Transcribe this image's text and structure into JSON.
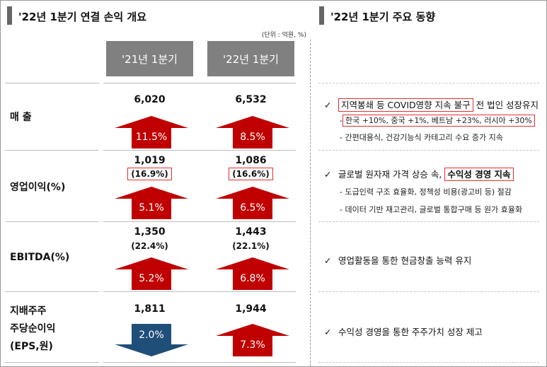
{
  "left": {
    "title": "'22년 1분기 연결 손익 개요",
    "unit": "(단위 : 억원, %)",
    "col1": "'21년 1분기",
    "col2": "'22년 1분기",
    "rows": [
      {
        "label": "매 출",
        "v1": "6,020",
        "v2": "6,532",
        "a1": "11.5%",
        "a2": "8.5%"
      },
      {
        "label": "영업이익(%)",
        "v1": "1,019",
        "s1": "(16.9%)",
        "v2": "1,086",
        "s2": "(16.6%)",
        "a1": "5.1%",
        "a2": "6.5%"
      },
      {
        "label": "EBITDA(%)",
        "v1": "1,350",
        "s1": "(22.4%)",
        "v2": "1,443",
        "s2": "(22.1%)",
        "a1": "5.2%",
        "a2": "6.8%"
      },
      {
        "label1": "지배주주",
        "label2": "주당순이익",
        "label3": "(EPS,원)",
        "v1": "1,811",
        "v2": "1,944",
        "a1": "2.0%",
        "a2": "7.3%"
      }
    ]
  },
  "right": {
    "title": "'22년 1분기 주요 동향",
    "b1_highlight": "지역봉쇄 등 COVID영향 지속 불구",
    "b1_rest": "전 법인 성장유지",
    "b1_sub1": "한국 +10%, 중국 +1%, 베트남 +23%, 러시아 +30%",
    "b1_sub2": "- 간편대용식, 건강기능식 카테고리 수요 증가 지속",
    "b2_pre": "글로벌 원자재 가격 상승 속, ",
    "b2_highlight": "수익성 경영 지속",
    "b2_sub1": "- 도급인력 구조 효율화, 정책성 비용(광고비 등) 절감",
    "b2_sub2": "- 데이터 기반 재고관리, 글로벌 통합구매 등 원가 효율화",
    "b3": "영업활동을 통한 현금창출 능력 유지",
    "b4": "수익성 경영을 통한 주주가치 성장 제고",
    "check": "✓",
    "dash": "-"
  },
  "colors": {
    "arrow_up": "#c00000",
    "arrow_down": "#1f4e79",
    "header_bg": "#808080",
    "highlight_border": "#e03030"
  }
}
